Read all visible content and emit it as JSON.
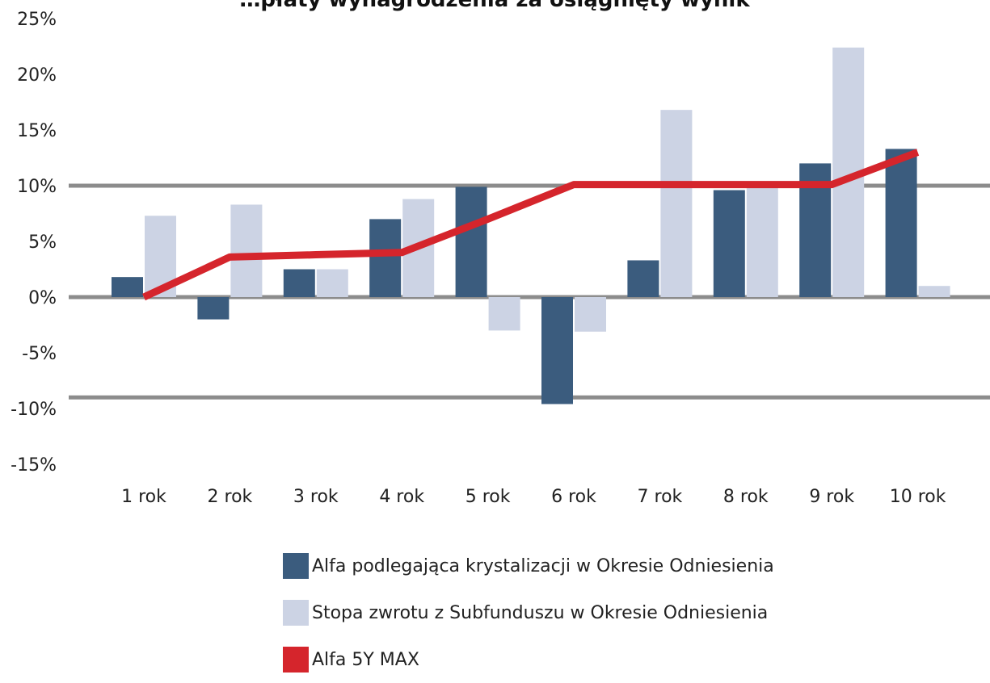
{
  "chart_data": {
    "type": "bar",
    "title": "…płaty wynagrodzenia za osiągnięty wynik",
    "categories": [
      "1 rok",
      "2 rok",
      "3 rok",
      "4 rok",
      "5 rok",
      "6 rok",
      "7 rok",
      "8 rok",
      "9 rok",
      "10 rok"
    ],
    "ylim": [
      -15,
      25
    ],
    "yticks": [
      25,
      20,
      15,
      10,
      5,
      0,
      -5,
      -10,
      -15
    ],
    "ytick_labels": [
      "25%",
      "20%",
      "15%",
      "10%",
      "5%",
      "0%",
      "-5%",
      "-10%",
      "-15%"
    ],
    "reference_lines": [
      10,
      0,
      -9
    ],
    "series": [
      {
        "name": "Alfa podlegająca krystalizacji w Okresie Odniesienia",
        "kind": "bar",
        "color": "#3b5c7e",
        "values": [
          1.8,
          -2.0,
          2.5,
          7.0,
          9.9,
          -9.6,
          3.3,
          9.6,
          12.0,
          13.3
        ]
      },
      {
        "name": "Stopa zwrotu z Subfunduszu w Okresie Odniesienia",
        "kind": "bar",
        "color": "#ccd3e4",
        "values": [
          7.3,
          8.3,
          2.5,
          8.8,
          -3.0,
          -3.1,
          16.8,
          9.8,
          22.4,
          1.0
        ]
      },
      {
        "name": "Alfa 5Y MAX",
        "kind": "line",
        "color": "#d5252c",
        "values": [
          0.0,
          3.6,
          3.8,
          4.0,
          7.0,
          10.1,
          10.1,
          10.1,
          10.1,
          13.0
        ]
      }
    ],
    "grid": false,
    "legend_position": "bottom-center"
  }
}
